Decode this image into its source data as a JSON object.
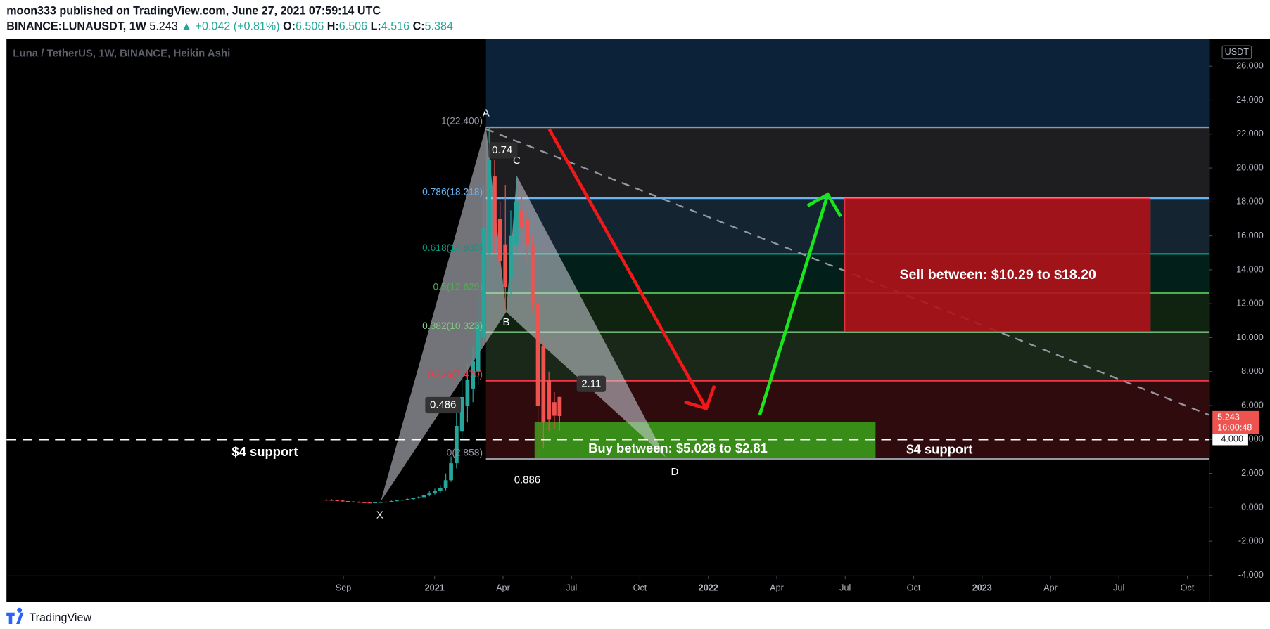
{
  "header": {
    "published": "moon333 published on TradingView.com, June 27, 2021 07:59:14 UTC",
    "symbol": "BINANCE:LUNAUSDT, 1W",
    "last": "5.243",
    "change": "▲ +0.042 (+0.81%)",
    "ohlc": [
      {
        "label": "O:",
        "value": "6.506"
      },
      {
        "label": "H:",
        "value": "6.506"
      },
      {
        "label": "L:",
        "value": "4.516"
      },
      {
        "label": "C:",
        "value": "5.384"
      }
    ]
  },
  "footer": {
    "brand": "TradingView"
  },
  "chart_data": {
    "type": "candlestick",
    "title": "Luna / TetherUS, 1W, BINANCE, Heikin Ashi",
    "currency": "USDT",
    "x": [
      7.25,
      7.49,
      7.73,
      7.96,
      8.2,
      8.44,
      8.68,
      8.92,
      9.15,
      9.39,
      9.63,
      9.87,
      10.11,
      10.34,
      10.58,
      10.82,
      11.06,
      11.3,
      11.53,
      11.77,
      12.01,
      12.25,
      12.49,
      12.72,
      12.96,
      13.2,
      13.44,
      13.68,
      13.91,
      14.15,
      14.39,
      14.63,
      14.87,
      15.1,
      15.34,
      15.58,
      15.82,
      16.06,
      16.29,
      16.53,
      16.77,
      17.01,
      17.25,
      17.48
    ],
    "open": [
      0.45,
      0.44,
      0.42,
      0.4,
      0.37,
      0.34,
      0.32,
      0.3,
      0.28,
      0.27,
      0.29,
      0.31,
      0.33,
      0.37,
      0.41,
      0.45,
      0.49,
      0.54,
      0.6,
      0.7,
      0.82,
      0.95,
      1.15,
      1.6,
      2.6,
      4.5,
      6,
      7,
      8,
      10,
      15,
      19.5,
      17,
      15.5,
      13.5,
      15.5,
      17.5,
      17,
      15.5,
      12,
      9.5,
      7.5,
      6.2,
      6.506
    ],
    "high": [
      0.5,
      0.48,
      0.45,
      0.42,
      0.4,
      0.36,
      0.35,
      0.33,
      0.31,
      0.32,
      0.34,
      0.36,
      0.4,
      0.44,
      0.48,
      0.52,
      0.58,
      0.66,
      0.78,
      0.95,
      1.1,
      1.3,
      2,
      3,
      6,
      8,
      8.5,
      9.5,
      12.5,
      19,
      22.4,
      20.5,
      18,
      19,
      17.5,
      19.5,
      18.5,
      17.5,
      16,
      12.5,
      10,
      8,
      6.8,
      6.506
    ],
    "low": [
      0.38,
      0.38,
      0.36,
      0.33,
      0.3,
      0.28,
      0.27,
      0.26,
      0.25,
      0.25,
      0.27,
      0.29,
      0.31,
      0.35,
      0.38,
      0.42,
      0.46,
      0.5,
      0.55,
      0.65,
      0.75,
      0.85,
      1,
      1.5,
      2.3,
      4,
      5,
      6.2,
      7.2,
      9.5,
      14,
      15,
      13.5,
      11.5,
      12.5,
      15,
      15.5,
      14.5,
      11.5,
      3,
      3.5,
      4.5,
      4.6,
      4.516
    ],
    "close": [
      0.42,
      0.4,
      0.38,
      0.35,
      0.32,
      0.3,
      0.29,
      0.28,
      0.27,
      0.29,
      0.31,
      0.33,
      0.37,
      0.41,
      0.45,
      0.49,
      0.54,
      0.6,
      0.7,
      0.82,
      0.95,
      1.15,
      1.6,
      2.6,
      4.8,
      6.5,
      7.5,
      8.6,
      10.8,
      16.5,
      20.5,
      16,
      14.5,
      13,
      16,
      18,
      16.5,
      15.5,
      12,
      6,
      5,
      5.2,
      5.4,
      5.384
    ],
    "up_color": "#26a69a",
    "down_color": "#ef5350",
    "xlim": [
      -6.77,
      45.96
    ],
    "ylim": [
      -4.04,
      27.59
    ],
    "xticks": [
      {
        "value": 8,
        "label": "Sep"
      },
      {
        "value": 12,
        "label": "2021"
      },
      {
        "value": 15,
        "label": "Apr"
      },
      {
        "value": 18,
        "label": "Jul"
      },
      {
        "value": 21,
        "label": "Oct"
      },
      {
        "value": 24,
        "label": "2022"
      },
      {
        "value": 27,
        "label": "Apr"
      },
      {
        "value": 30,
        "label": "Jul"
      },
      {
        "value": 33,
        "label": "Oct"
      },
      {
        "value": 36,
        "label": "2023"
      },
      {
        "value": 39,
        "label": "Apr"
      },
      {
        "value": 42,
        "label": "Jul"
      },
      {
        "value": 45,
        "label": "Oct"
      }
    ],
    "yticks": [
      {
        "value": -4,
        "label": "-4.000"
      },
      {
        "value": -2,
        "label": "-2.000"
      },
      {
        "value": 0,
        "label": "0.000"
      },
      {
        "value": 2,
        "label": "2.000"
      },
      {
        "value": 4,
        "label": "4.000"
      },
      {
        "value": 6,
        "label": "6.000"
      },
      {
        "value": 8,
        "label": "8.000"
      },
      {
        "value": 10,
        "label": "10.000"
      },
      {
        "value": 12,
        "label": "12.000"
      },
      {
        "value": 14,
        "label": "14.000"
      },
      {
        "value": 16,
        "label": "16.000"
      },
      {
        "value": 18,
        "label": "18.000"
      },
      {
        "value": 20,
        "label": "20.000"
      },
      {
        "value": 22,
        "label": "22.000"
      },
      {
        "value": 24,
        "label": "24.000"
      },
      {
        "value": 26,
        "label": "26.000"
      }
    ],
    "fib_levels": [
      {
        "value": 22.4,
        "label": "1(22.400)",
        "color": "#9598a1"
      },
      {
        "value": 18.218,
        "label": "0.786(18.218)",
        "color": "#64b5f6"
      },
      {
        "value": 14.935,
        "label": "0.618(14.935)",
        "color": "#089981"
      },
      {
        "value": 12.629,
        "label": "0.5(12.629)",
        "color": "#4caf50"
      },
      {
        "value": 10.323,
        "label": "0.382(10.323)",
        "color": "#81c784"
      },
      {
        "value": 7.47,
        "label": "0.236(7.470)",
        "color": "#f23645"
      },
      {
        "value": 2.858,
        "label": "0(2.858)",
        "color": "#9598a1"
      }
    ],
    "last_price": {
      "value": 5.243,
      "label": "5.243",
      "countdown": "16:00:48",
      "color": "#ef5350"
    },
    "support": {
      "value": 4,
      "label": "4.000",
      "texts": [
        "$4 support",
        "$4 support"
      ]
    },
    "annotations": {
      "points": [
        "X",
        "A",
        "B",
        "C",
        "D"
      ],
      "ratios": [
        "0.74",
        "0.486",
        "2.11",
        "0.886"
      ],
      "sell_zone": "Sell between: $10.29 to $18.20",
      "buy_zone": "Buy between: $5.028 to $2.81"
    }
  }
}
